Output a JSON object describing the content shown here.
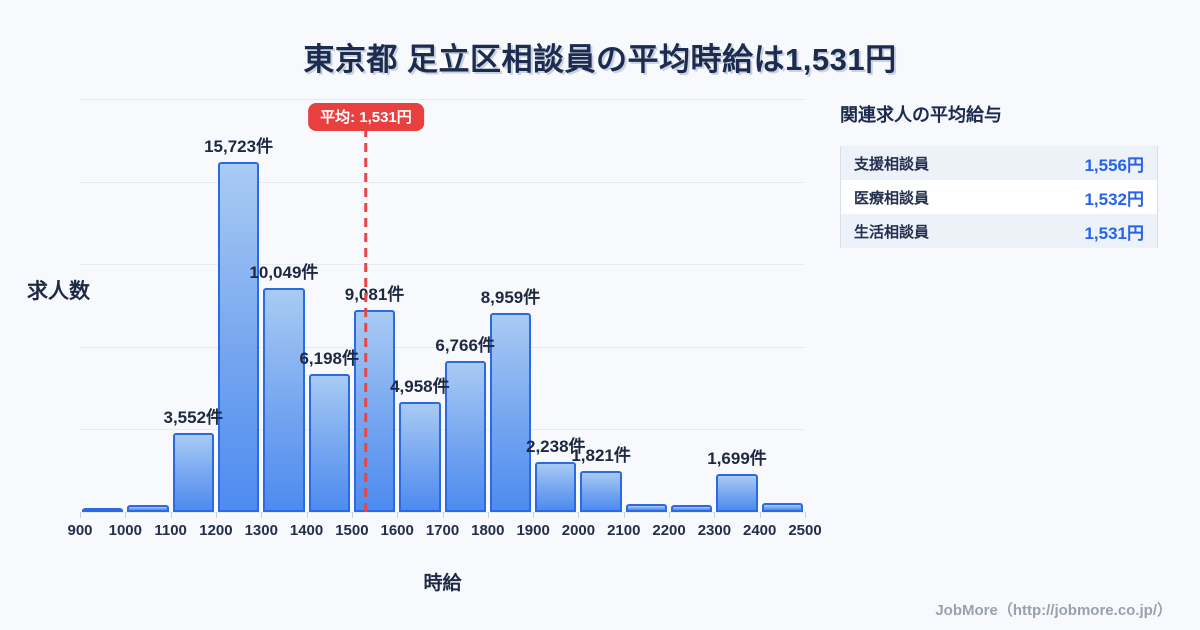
{
  "page": {
    "title": "東京都 足立区相談員の平均時給は1,531円",
    "background_color": "#f7f9fc"
  },
  "chart_data": {
    "type": "bar",
    "title": "東京都 足立区相談員の平均時給は1,531円",
    "xlabel": "時給",
    "ylabel": "求人数",
    "bin_edges": [
      900,
      1000,
      1100,
      1200,
      1300,
      1400,
      1500,
      1600,
      1700,
      1800,
      1900,
      2000,
      2100,
      2200,
      2300,
      2400,
      2500
    ],
    "values": [
      90,
      310,
      3552,
      15723,
      10049,
      6198,
      9081,
      4958,
      6766,
      8959,
      2238,
      1821,
      360,
      310,
      1699,
      400
    ],
    "bar_labels": [
      "",
      "",
      "3,552件",
      "15,723件",
      "10,049件",
      "6,198件",
      "9,081件",
      "4,958件",
      "6,766件",
      "8,959件",
      "2,238件",
      "1,821件",
      "",
      "",
      "1,699件",
      ""
    ],
    "ylim": [
      0,
      18560
    ],
    "grid": true,
    "gridline_count": 6,
    "mean_line": {
      "x": 1531,
      "label": "平均: 1,531円",
      "color": "#e64744"
    },
    "bar_fill_top": "#a9cbf4",
    "bar_fill_bottom": "#4e8bf0",
    "bar_border_color": "#2b6ae3"
  },
  "salary_panel": {
    "heading": "関連求人の平均給与",
    "rows": [
      {
        "label": "支援相談員",
        "value": "1,556円"
      },
      {
        "label": "医療相談員",
        "value": "1,532円"
      },
      {
        "label": "生活相談員",
        "value": "1,531円"
      }
    ],
    "value_color": "#2563eb"
  },
  "footer": {
    "credit": "JobMore（http://jobmore.co.jp/）"
  }
}
